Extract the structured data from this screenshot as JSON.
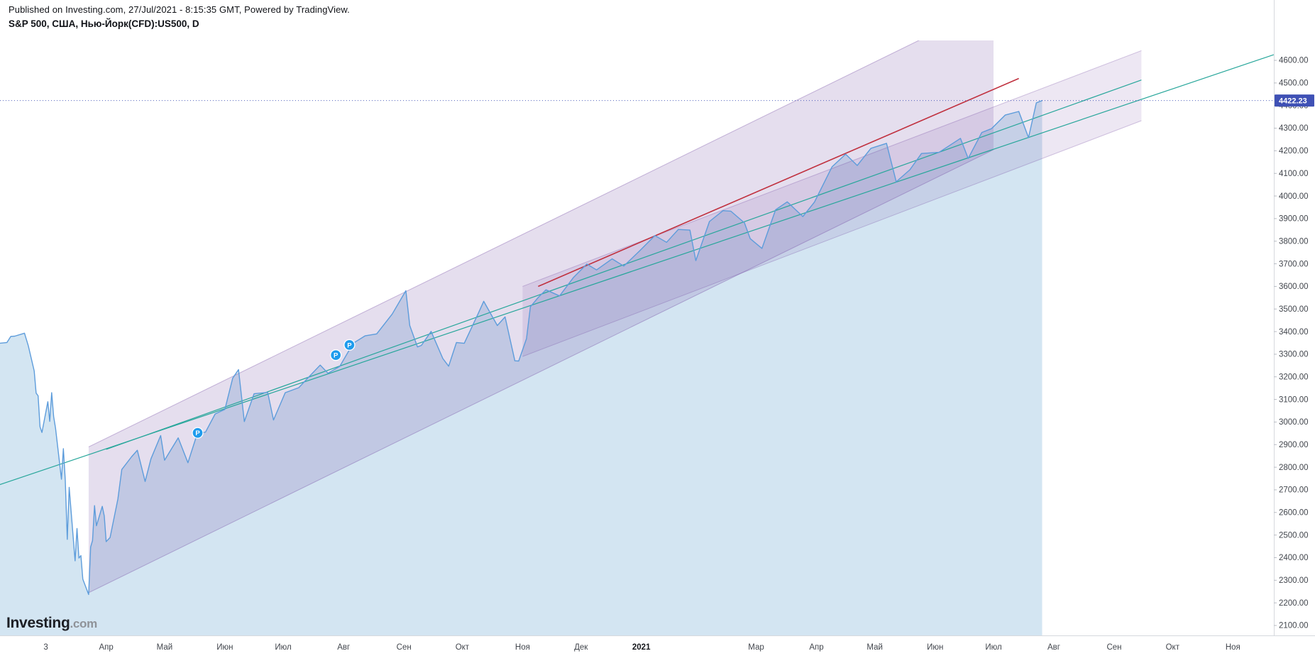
{
  "header": {
    "published_line": "Published on Investing.com, 27/Jul/2021 - 8:15:35 GMT, Powered by TradingView.",
    "symbol_line": "S&P 500, США, Нью-Йорк(CFD):US500, D"
  },
  "logo": {
    "brand": "Investing",
    "suffix": ".com"
  },
  "chart_data": {
    "type": "line",
    "title": "S&P 500, США, Нью-Йорк(CFD):US500, D",
    "symbol": "US500",
    "interval": "D",
    "last_price": "4422.23",
    "line_color": "#5d9cdb",
    "area_color": "rgba(110,170,212,0.30)",
    "last_price_line_color": "#3f51b5",
    "last_price_badge_color": "#3f51b5",
    "grid": "off",
    "legend": "none",
    "y_axis": {
      "min": 2056,
      "max": 4688,
      "tick_start": 2100,
      "tick_end": 4600,
      "tick_step": 100,
      "tick_format_decimals": 2
    },
    "x_axis": {
      "epoch": "2020-03-01",
      "offset_frac": 0.036,
      "month_width_frac": 0.0465,
      "labels": [
        {
          "date": "2020-03-01",
          "label": "3",
          "year": false
        },
        {
          "date": "2020-04-01",
          "label": "Апр",
          "year": false
        },
        {
          "date": "2020-05-01",
          "label": "Май",
          "year": false
        },
        {
          "date": "2020-06-01",
          "label": "Июн",
          "year": false
        },
        {
          "date": "2020-07-01",
          "label": "Июл",
          "year": false
        },
        {
          "date": "2020-08-01",
          "label": "Авг",
          "year": false
        },
        {
          "date": "2020-09-01",
          "label": "Сен",
          "year": false
        },
        {
          "date": "2020-10-01",
          "label": "Окт",
          "year": false
        },
        {
          "date": "2020-11-01",
          "label": "Ноя",
          "year": false
        },
        {
          "date": "2020-12-01",
          "label": "Дек",
          "year": false
        },
        {
          "date": "2021-01-01",
          "label": "2021",
          "year": true
        },
        {
          "date": "2021-03-01",
          "label": "Мар",
          "year": false
        },
        {
          "date": "2021-04-01",
          "label": "Апр",
          "year": false
        },
        {
          "date": "2021-05-01",
          "label": "Май",
          "year": false
        },
        {
          "date": "2021-06-01",
          "label": "Июн",
          "year": false
        },
        {
          "date": "2021-07-01",
          "label": "Июл",
          "year": false
        },
        {
          "date": "2021-08-01",
          "label": "Авг",
          "year": false
        },
        {
          "date": "2021-09-01",
          "label": "Сен",
          "year": false
        },
        {
          "date": "2021-10-01",
          "label": "Окт",
          "year": false
        },
        {
          "date": "2021-11-01",
          "label": "Ноя",
          "year": false
        }
      ]
    },
    "series": [
      [
        "2020-02-06",
        3348
      ],
      [
        "2020-02-10",
        3352
      ],
      [
        "2020-02-12",
        3379
      ],
      [
        "2020-02-14",
        3380
      ],
      [
        "2020-02-19",
        3393
      ],
      [
        "2020-02-21",
        3337
      ],
      [
        "2020-02-24",
        3226
      ],
      [
        "2020-02-25",
        3128
      ],
      [
        "2020-02-26",
        3116
      ],
      [
        "2020-02-27",
        2979
      ],
      [
        "2020-02-28",
        2954
      ],
      [
        "2020-03-02",
        3090
      ],
      [
        "2020-03-03",
        3003
      ],
      [
        "2020-03-04",
        3130
      ],
      [
        "2020-03-05",
        3024
      ],
      [
        "2020-03-06",
        2972
      ],
      [
        "2020-03-09",
        2747
      ],
      [
        "2020-03-10",
        2882
      ],
      [
        "2020-03-11",
        2741
      ],
      [
        "2020-03-12",
        2481
      ],
      [
        "2020-03-13",
        2711
      ],
      [
        "2020-03-16",
        2386
      ],
      [
        "2020-03-17",
        2529
      ],
      [
        "2020-03-18",
        2398
      ],
      [
        "2020-03-19",
        2409
      ],
      [
        "2020-03-20",
        2305
      ],
      [
        "2020-03-23",
        2237
      ],
      [
        "2020-03-24",
        2447
      ],
      [
        "2020-03-25",
        2476
      ],
      [
        "2020-03-26",
        2630
      ],
      [
        "2020-03-27",
        2541
      ],
      [
        "2020-03-30",
        2627
      ],
      [
        "2020-03-31",
        2585
      ],
      [
        "2020-04-01",
        2471
      ],
      [
        "2020-04-03",
        2489
      ],
      [
        "2020-04-07",
        2659
      ],
      [
        "2020-04-09",
        2790
      ],
      [
        "2020-04-14",
        2846
      ],
      [
        "2020-04-17",
        2875
      ],
      [
        "2020-04-21",
        2737
      ],
      [
        "2020-04-24",
        2837
      ],
      [
        "2020-04-29",
        2940
      ],
      [
        "2020-05-01",
        2831
      ],
      [
        "2020-05-08",
        2930
      ],
      [
        "2020-05-13",
        2820
      ],
      [
        "2020-05-18",
        2954
      ],
      [
        "2020-05-22",
        2955
      ],
      [
        "2020-05-27",
        3036
      ],
      [
        "2020-06-01",
        3056
      ],
      [
        "2020-06-05",
        3194
      ],
      [
        "2020-06-08",
        3232
      ],
      [
        "2020-06-11",
        3002
      ],
      [
        "2020-06-16",
        3125
      ],
      [
        "2020-06-23",
        3131
      ],
      [
        "2020-06-26",
        3009
      ],
      [
        "2020-07-02",
        3130
      ],
      [
        "2020-07-09",
        3152
      ],
      [
        "2020-07-14",
        3198
      ],
      [
        "2020-07-20",
        3252
      ],
      [
        "2020-07-24",
        3216
      ],
      [
        "2020-07-30",
        3246
      ],
      [
        "2020-08-06",
        3349
      ],
      [
        "2020-08-12",
        3381
      ],
      [
        "2020-08-18",
        3390
      ],
      [
        "2020-08-26",
        3478
      ],
      [
        "2020-09-02",
        3581
      ],
      [
        "2020-09-04",
        3427
      ],
      [
        "2020-09-08",
        3332
      ],
      [
        "2020-09-10",
        3339
      ],
      [
        "2020-09-15",
        3401
      ],
      [
        "2020-09-21",
        3281
      ],
      [
        "2020-09-24",
        3247
      ],
      [
        "2020-09-28",
        3352
      ],
      [
        "2020-10-02",
        3348
      ],
      [
        "2020-10-09",
        3477
      ],
      [
        "2020-10-12",
        3534
      ],
      [
        "2020-10-19",
        3427
      ],
      [
        "2020-10-23",
        3465
      ],
      [
        "2020-10-28",
        3271
      ],
      [
        "2020-10-30",
        3270
      ],
      [
        "2020-11-03",
        3369
      ],
      [
        "2020-11-05",
        3510
      ],
      [
        "2020-11-09",
        3551
      ],
      [
        "2020-11-13",
        3585
      ],
      [
        "2020-11-20",
        3558
      ],
      [
        "2020-11-27",
        3638
      ],
      [
        "2020-12-04",
        3699
      ],
      [
        "2020-12-09",
        3673
      ],
      [
        "2020-12-17",
        3722
      ],
      [
        "2020-12-23",
        3690
      ],
      [
        "2020-12-31",
        3756
      ],
      [
        "2021-01-08",
        3825
      ],
      [
        "2021-01-14",
        3795
      ],
      [
        "2021-01-20",
        3852
      ],
      [
        "2021-01-26",
        3849
      ],
      [
        "2021-01-29",
        3714
      ],
      [
        "2021-02-05",
        3887
      ],
      [
        "2021-02-12",
        3935
      ],
      [
        "2021-02-16",
        3933
      ],
      [
        "2021-02-23",
        3881
      ],
      [
        "2021-02-26",
        3811
      ],
      [
        "2021-03-04",
        3768
      ],
      [
        "2021-03-11",
        3939
      ],
      [
        "2021-03-17",
        3974
      ],
      [
        "2021-03-25",
        3909
      ],
      [
        "2021-03-31",
        3973
      ],
      [
        "2021-04-09",
        4129
      ],
      [
        "2021-04-16",
        4185
      ],
      [
        "2021-04-22",
        4135
      ],
      [
        "2021-04-29",
        4211
      ],
      [
        "2021-05-07",
        4233
      ],
      [
        "2021-05-12",
        4063
      ],
      [
        "2021-05-19",
        4116
      ],
      [
        "2021-05-25",
        4188
      ],
      [
        "2021-06-03",
        4193
      ],
      [
        "2021-06-14",
        4255
      ],
      [
        "2021-06-18",
        4166
      ],
      [
        "2021-06-25",
        4281
      ],
      [
        "2021-06-30",
        4298
      ],
      [
        "2021-07-07",
        4358
      ],
      [
        "2021-07-14",
        4374
      ],
      [
        "2021-07-19",
        4258
      ],
      [
        "2021-07-23",
        4412
      ],
      [
        "2021-07-26",
        4422.23
      ]
    ],
    "markers": [
      {
        "date": "2020-05-18",
        "price": 2952,
        "label": "P",
        "color": "#1f9ced"
      },
      {
        "date": "2020-07-28",
        "price": 3296,
        "label": "P",
        "color": "#1f9ced"
      },
      {
        "date": "2020-08-04",
        "price": 3341,
        "label": "P",
        "color": "#1f9ced"
      }
    ],
    "drawings": {
      "channels": [
        {
          "name": "channel-2020",
          "start": "2020-03-23",
          "end": "2021-07-01",
          "start_low": 2245,
          "start_high": 2890,
          "end_low": 4205,
          "end_high": 4850,
          "fill": "rgba(113,70,160,0.18)",
          "stroke": "rgba(113,70,160,0.38)"
        },
        {
          "name": "channel-2021",
          "start": "2020-11-01",
          "end": "2021-09-15",
          "start_low": 3290,
          "start_high": 3600,
          "end_low": 4333,
          "end_high": 4643,
          "fill": "rgba(113,70,160,0.13)",
          "stroke": "rgba(113,70,160,0.30)"
        }
      ],
      "trendlines": [
        {
          "name": "red-trend-line",
          "start": "2020-11-09",
          "start_price": 3600,
          "end": "2021-07-14",
          "end_price": 4520,
          "color": "#c0303e",
          "width": 1.6
        },
        {
          "name": "teal-trend-line-long",
          "start": "2020-02-06",
          "start_price": 2722,
          "end": "2021-11-22",
          "end_price": 4625,
          "color": "#26a69a",
          "width": 1.2
        },
        {
          "name": "teal-trend-line-short",
          "start": "2020-04-01",
          "start_price": 2879,
          "end": "2021-09-15",
          "end_price": 4513,
          "color": "#26a69a",
          "width": 1.2
        }
      ]
    }
  }
}
